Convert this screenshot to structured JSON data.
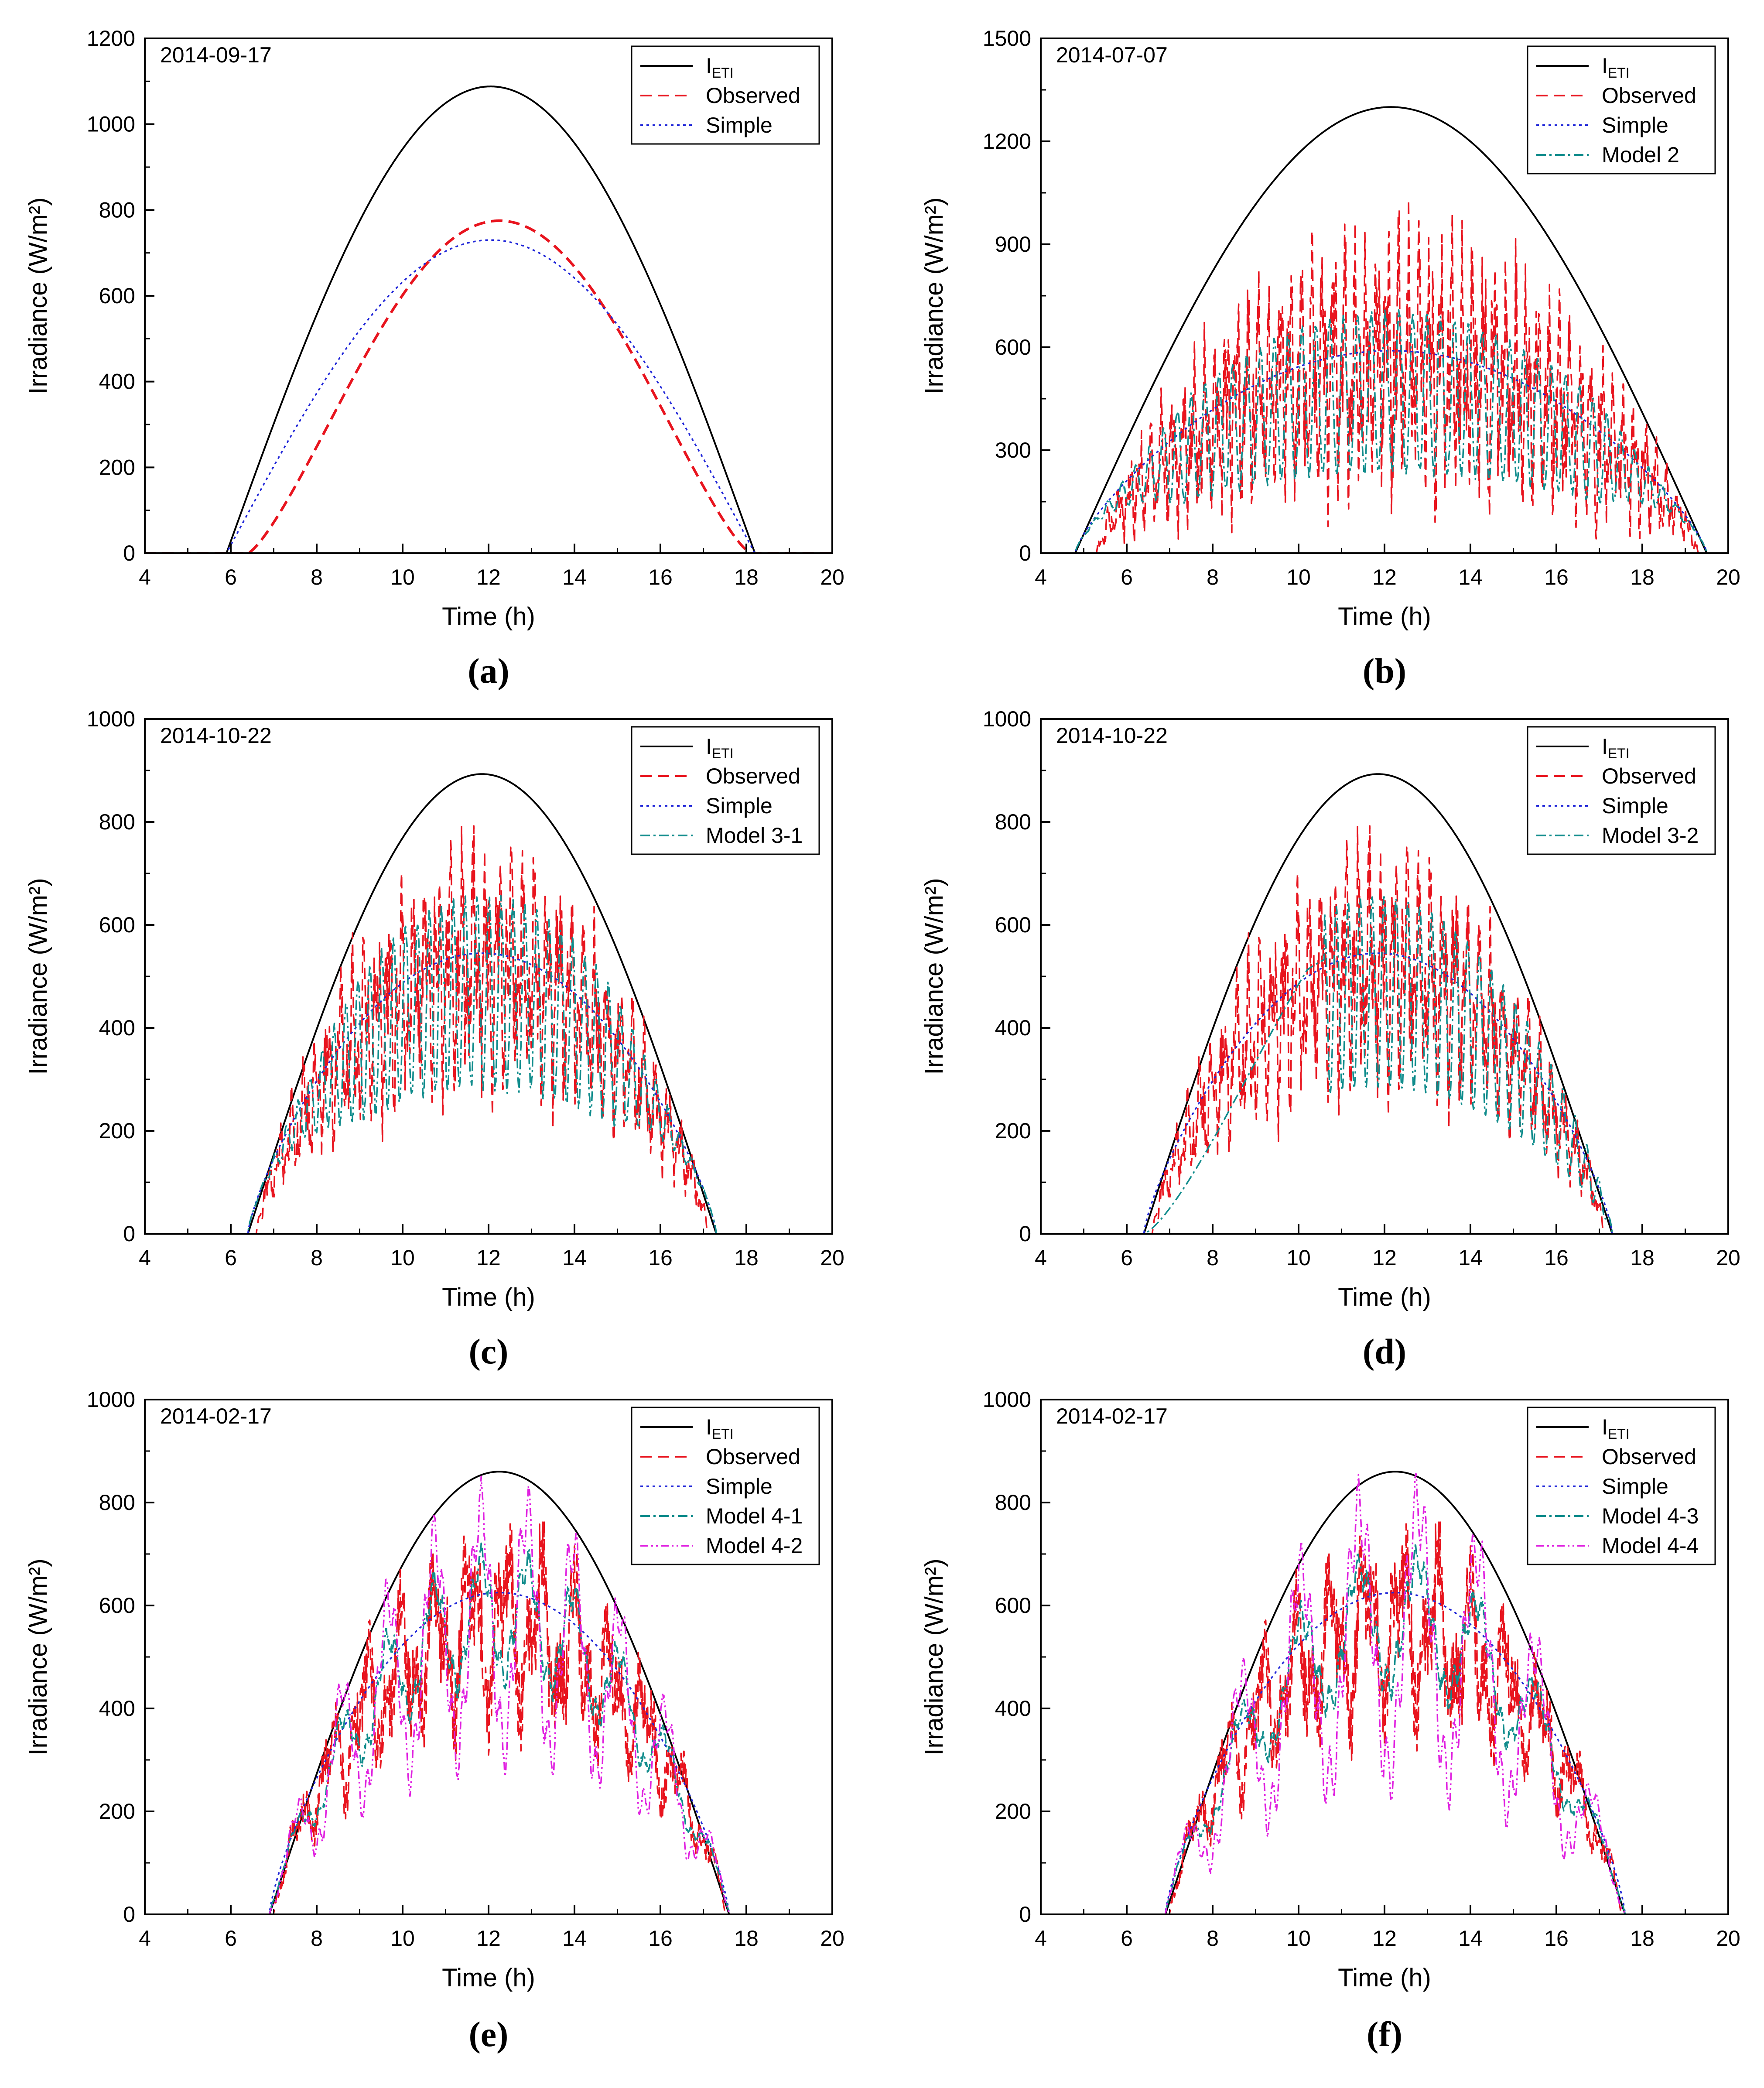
{
  "colors": {
    "ETI": "#000000",
    "Observed": "#e8141e",
    "Simple": "#2026d8",
    "Model": "#108c8c",
    "ModelB": "#e020e0"
  },
  "chart_data": [
    {
      "type": "line",
      "id": "a",
      "caption": "(a)",
      "date": "2014-09-17",
      "xlabel": "Time (h)",
      "ylabel": "Irradiance (W/m²)",
      "xlim": [
        4,
        20
      ],
      "ylim": [
        0,
        1200
      ],
      "xticks": [
        4,
        6,
        8,
        10,
        12,
        14,
        16,
        18,
        20
      ],
      "yticks": [
        0,
        200,
        400,
        600,
        800,
        1000,
        1200
      ],
      "legend_position": "top-right",
      "legend": [
        "I_ETI",
        "Observed",
        "Simple"
      ],
      "sunrise": 5.9,
      "sunset": 18.2,
      "series": [
        {
          "name": "I_ETI",
          "legend_label": "I",
          "legend_sub": "ETI",
          "kind": "eti",
          "peak": 1088,
          "center": 12.05,
          "style": "solid"
        },
        {
          "name": "Observed",
          "kind": "clear",
          "peak": 775,
          "center": 12.05,
          "start": 6.4,
          "end": 18.1,
          "exp": 1.3,
          "style": "dashed"
        },
        {
          "name": "Simple",
          "kind": "clear",
          "peak": 730,
          "center": 12.05,
          "start": 5.9,
          "end": 18.2,
          "exp": 1.0,
          "style": "dotted"
        }
      ]
    },
    {
      "type": "line",
      "id": "b",
      "caption": "(b)",
      "date": "2014-07-07",
      "xlabel": "Time (h)",
      "ylabel": "Irradiance (W/m²)",
      "xlim": [
        4,
        20
      ],
      "ylim": [
        0,
        1500
      ],
      "xticks": [
        4,
        6,
        8,
        10,
        12,
        14,
        16,
        18,
        20
      ],
      "yticks": [
        0,
        300,
        600,
        900,
        1200,
        1500
      ],
      "legend_position": "top-right",
      "legend": [
        "I_ETI",
        "Observed",
        "Simple",
        "Model 2"
      ],
      "sunrise": 4.8,
      "sunset": 19.5,
      "series": [
        {
          "name": "I_ETI",
          "legend_label": "I",
          "legend_sub": "ETI",
          "kind": "eti",
          "peak": 1300,
          "center": 12.15,
          "style": "solid"
        },
        {
          "name": "Observed",
          "kind": "noisy",
          "base": 560,
          "amp": 380,
          "freq": 5.2,
          "seed": 11,
          "start": 5.3,
          "end": 19.3,
          "style": "dashed"
        },
        {
          "name": "Simple",
          "kind": "smooth",
          "peak": 590,
          "center": 12.15,
          "start": 4.8,
          "end": 19.5,
          "style": "dotted"
        },
        {
          "name": "Model 2",
          "kind": "oscill",
          "base": 470,
          "amp": 230,
          "freq": 3.1,
          "seed": 5,
          "start": 4.8,
          "end": 19.5,
          "style": "dashdot"
        }
      ]
    },
    {
      "type": "line",
      "id": "c",
      "caption": "(c)",
      "date": "2014-10-22",
      "xlabel": "Time (h)",
      "ylabel": "Irradiance (W/m²)",
      "xlim": [
        4,
        20
      ],
      "ylim": [
        0,
        1000
      ],
      "xticks": [
        4,
        6,
        8,
        10,
        12,
        14,
        16,
        18,
        20
      ],
      "yticks": [
        0,
        200,
        400,
        600,
        800,
        1000
      ],
      "legend_position": "top-right",
      "legend": [
        "I_ETI",
        "Observed",
        "Simple",
        "Model 3-1"
      ],
      "sunrise": 6.4,
      "sunset": 17.3,
      "series": [
        {
          "name": "I_ETI",
          "legend_label": "I",
          "legend_sub": "ETI",
          "kind": "eti",
          "peak": 893,
          "center": 11.85,
          "style": "solid"
        },
        {
          "name": "Observed",
          "kind": "noisy",
          "base": 520,
          "amp": 230,
          "freq": 4.6,
          "seed": 23,
          "start": 6.6,
          "end": 17.1,
          "style": "dashed"
        },
        {
          "name": "Simple",
          "kind": "smooth",
          "peak": 545,
          "center": 11.85,
          "start": 6.4,
          "end": 17.3,
          "style": "dotted"
        },
        {
          "name": "Model 3-1",
          "kind": "oscill",
          "base": 470,
          "amp": 180,
          "freq": 3.6,
          "seed": 9,
          "start": 6.4,
          "end": 17.3,
          "style": "dashdot"
        }
      ]
    },
    {
      "type": "line",
      "id": "d",
      "caption": "(d)",
      "date": "2014-10-22",
      "xlabel": "Time (h)",
      "ylabel": "Irradiance (W/m²)",
      "xlim": [
        4,
        20
      ],
      "ylim": [
        0,
        1000
      ],
      "xticks": [
        4,
        6,
        8,
        10,
        12,
        14,
        16,
        18,
        20
      ],
      "yticks": [
        0,
        200,
        400,
        600,
        800,
        1000
      ],
      "legend_position": "top-right",
      "legend": [
        "I_ETI",
        "Observed",
        "Simple",
        "Model 3-2"
      ],
      "sunrise": 6.4,
      "sunset": 17.3,
      "series": [
        {
          "name": "I_ETI",
          "legend_label": "I",
          "legend_sub": "ETI",
          "kind": "eti",
          "peak": 893,
          "center": 11.85,
          "style": "solid"
        },
        {
          "name": "Observed",
          "kind": "noisy",
          "base": 520,
          "amp": 230,
          "freq": 4.6,
          "seed": 23,
          "start": 6.6,
          "end": 17.1,
          "style": "dashed"
        },
        {
          "name": "Simple",
          "kind": "smooth",
          "peak": 545,
          "center": 11.85,
          "start": 6.4,
          "end": 17.3,
          "style": "dotted"
        },
        {
          "name": "Model 3-2",
          "kind": "oscill_split",
          "base": 470,
          "amp": 185,
          "freq": 3.6,
          "seed": 4,
          "split": 10.6,
          "start": 6.4,
          "end": 17.3,
          "style": "dashdot"
        }
      ]
    },
    {
      "type": "line",
      "id": "e",
      "caption": "(e)",
      "date": "2014-02-17",
      "xlabel": "Time (h)",
      "ylabel": "Irradiance (W/m²)",
      "xlim": [
        4,
        20
      ],
      "ylim": [
        0,
        1000
      ],
      "xticks": [
        4,
        6,
        8,
        10,
        12,
        14,
        16,
        18,
        20
      ],
      "yticks": [
        0,
        200,
        400,
        600,
        800,
        1000
      ],
      "legend_position": "top-right",
      "legend": [
        "I_ETI",
        "Observed",
        "Simple",
        "Model 4-1",
        "Model 4-2"
      ],
      "sunrise": 6.9,
      "sunset": 17.6,
      "series": [
        {
          "name": "I_ETI",
          "legend_label": "I",
          "legend_sub": "ETI",
          "kind": "eti",
          "peak": 860,
          "center": 12.25,
          "style": "solid"
        },
        {
          "name": "Observed",
          "kind": "noisy",
          "base": 560,
          "amp": 200,
          "freq": 1.6,
          "seed": 31,
          "start": 7.0,
          "end": 17.5,
          "style": "dashed"
        },
        {
          "name": "Simple",
          "kind": "smooth",
          "peak": 625,
          "center": 12.25,
          "start": 6.9,
          "end": 17.6,
          "style": "dotted"
        },
        {
          "name": "Model 4-1",
          "kind": "lobes",
          "base": 580,
          "amp": 110,
          "freq": 1.85,
          "seed": 7,
          "start": 6.9,
          "end": 17.6,
          "style": "dashdot"
        },
        {
          "name": "Model 4-2",
          "kind": "lobes",
          "base": 560,
          "amp": 230,
          "freq": 1.85,
          "seed": 13,
          "start": 6.9,
          "end": 17.6,
          "style": "dashdotdot"
        }
      ]
    },
    {
      "type": "line",
      "id": "f",
      "caption": "(f)",
      "date": "2014-02-17",
      "xlabel": "Time (h)",
      "ylabel": "Irradiance (W/m²)",
      "xlim": [
        4,
        20
      ],
      "ylim": [
        0,
        1000
      ],
      "xticks": [
        4,
        6,
        8,
        10,
        12,
        14,
        16,
        18,
        20
      ],
      "yticks": [
        0,
        200,
        400,
        600,
        800,
        1000
      ],
      "legend_position": "top-right",
      "legend": [
        "I_ETI",
        "Observed",
        "Simple",
        "Model 4-3",
        "Model 4-4"
      ],
      "sunrise": 6.9,
      "sunset": 17.6,
      "series": [
        {
          "name": "I_ETI",
          "legend_label": "I",
          "legend_sub": "ETI",
          "kind": "eti",
          "peak": 860,
          "center": 12.25,
          "style": "solid"
        },
        {
          "name": "Observed",
          "kind": "noisy",
          "base": 560,
          "amp": 200,
          "freq": 1.6,
          "seed": 31,
          "start": 7.0,
          "end": 17.5,
          "style": "dashed"
        },
        {
          "name": "Simple",
          "kind": "smooth",
          "peak": 625,
          "center": 12.25,
          "start": 6.9,
          "end": 17.6,
          "style": "dotted"
        },
        {
          "name": "Model 4-3",
          "kind": "lobes",
          "base": 570,
          "amp": 120,
          "freq": 1.45,
          "seed": 17,
          "start": 6.9,
          "end": 17.6,
          "style": "dashdot"
        },
        {
          "name": "Model 4-4",
          "kind": "lobes",
          "base": 540,
          "amp": 260,
          "freq": 1.45,
          "seed": 19,
          "start": 6.9,
          "end": 17.6,
          "style": "dashdotdot"
        }
      ]
    }
  ]
}
